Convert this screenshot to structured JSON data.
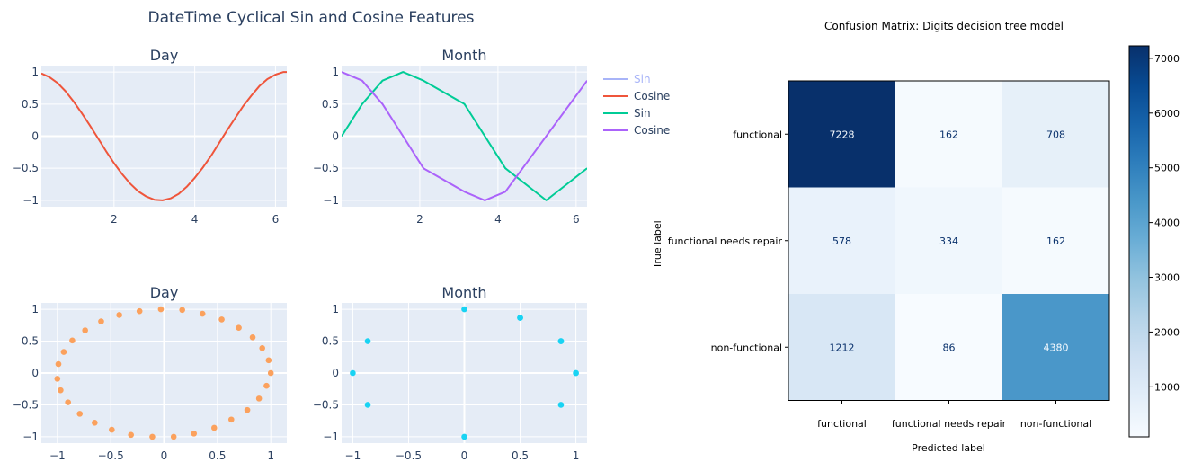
{
  "colors": {
    "plot_bg": "#e5ecf6",
    "grid": "#ffffff",
    "text": "#2a3f5f",
    "day_line": "#ef553b",
    "month_sin": "#00cc96",
    "month_cos": "#ab63fa",
    "legend_sin_faded": "#a8b4f8",
    "day_scatter": "#fba15d",
    "month_scatter": "#19d3f3",
    "cm_dark_text": "#f7fbff",
    "cm_light_text": "#08306b"
  },
  "left_figure": {
    "title": "DateTime Cyclical Sin and Cosine Features",
    "legend": [
      {
        "label": "Sin",
        "color": "#a8b4f8",
        "faded": true
      },
      {
        "label": "Cosine",
        "color": "#ef553b"
      },
      {
        "label": "Sin",
        "color": "#00cc96"
      },
      {
        "label": "Cosine",
        "color": "#ab63fa"
      }
    ]
  },
  "chart_data": [
    {
      "type": "line",
      "title": "Day",
      "xlim": [
        0.2,
        6.28
      ],
      "ylim": [
        -1.1,
        1.1
      ],
      "xticks": [
        2,
        4,
        6
      ],
      "xtick_labels": [
        "2",
        "4",
        "6"
      ],
      "yticks": [
        1,
        0.5,
        0,
        -0.5,
        -1
      ],
      "ytick_labels": [
        "1",
        "0.5",
        "0",
        "−0.5",
        "−1"
      ],
      "series": [
        {
          "color": "#ef553b",
          "x": [
            0.2,
            0.4,
            0.6,
            0.8,
            1.0,
            1.2,
            1.4,
            1.6,
            1.8,
            2.0,
            2.2,
            2.4,
            2.6,
            2.8,
            3.0,
            3.2,
            3.4,
            3.6,
            3.8,
            4.0,
            4.2,
            4.4,
            4.6,
            4.8,
            5.0,
            5.2,
            5.4,
            5.6,
            5.8,
            6.0,
            6.2,
            6.28
          ],
          "y": [
            0.98,
            0.92,
            0.83,
            0.7,
            0.54,
            0.36,
            0.17,
            -0.03,
            -0.23,
            -0.42,
            -0.59,
            -0.74,
            -0.86,
            -0.94,
            -0.99,
            -1.0,
            -0.97,
            -0.9,
            -0.79,
            -0.65,
            -0.49,
            -0.31,
            -0.11,
            0.09,
            0.28,
            0.47,
            0.63,
            0.78,
            0.89,
            0.96,
            1.0,
            1.0
          ]
        }
      ]
    },
    {
      "type": "line",
      "title": "Month",
      "xlim": [
        0,
        6.28
      ],
      "ylim": [
        -1.1,
        1.1
      ],
      "xticks": [
        2,
        4,
        6
      ],
      "xtick_labels": [
        "2",
        "4",
        "6"
      ],
      "yticks": [
        1,
        0.5,
        0,
        -0.5,
        -1
      ],
      "ytick_labels": [
        "1",
        "0.5",
        "0",
        "−0.5",
        "−1"
      ],
      "series": [
        {
          "color": "#00cc96",
          "x": [
            0,
            0.524,
            1.047,
            1.571,
            2.094,
            3.142,
            4.189,
            5.236,
            6.283
          ],
          "y": [
            0,
            0.5,
            0.866,
            1.0,
            0.866,
            0.5,
            -0.5,
            -1.0,
            -0.5
          ]
        },
        {
          "color": "#ab63fa",
          "x": [
            0,
            0.524,
            1.047,
            1.571,
            2.094,
            3.142,
            3.665,
            4.189,
            6.283
          ],
          "y": [
            1.0,
            0.866,
            0.5,
            0,
            -0.5,
            -0.866,
            -1.0,
            -0.866,
            0.866
          ]
        }
      ]
    },
    {
      "type": "scatter",
      "title": "Day",
      "xlim": [
        -1.15,
        1.15
      ],
      "ylim": [
        -1.1,
        1.1
      ],
      "xticks": [
        -1,
        -0.5,
        0,
        0.5,
        1
      ],
      "xtick_labels": [
        "−1",
        "−0.5",
        "0",
        "0.5",
        "1"
      ],
      "yticks": [
        1,
        0.5,
        0,
        -0.5,
        -1
      ],
      "ytick_labels": [
        "1",
        "0.5",
        "0",
        "−0.5",
        "−1"
      ],
      "series": [
        {
          "color": "#fba15d",
          "points": [
            [
              1.0,
              0.0
            ],
            [
              0.98,
              0.2
            ],
            [
              0.92,
              0.39
            ],
            [
              0.83,
              0.56
            ],
            [
              0.7,
              0.71
            ],
            [
              0.54,
              0.84
            ],
            [
              0.36,
              0.93
            ],
            [
              0.17,
              0.99
            ],
            [
              -0.03,
              1.0
            ],
            [
              -0.23,
              0.97
            ],
            [
              -0.42,
              0.91
            ],
            [
              -0.59,
              0.81
            ],
            [
              -0.74,
              0.67
            ],
            [
              -0.86,
              0.51
            ],
            [
              -0.94,
              0.33
            ],
            [
              -0.99,
              0.14
            ],
            [
              -1.0,
              -0.09
            ],
            [
              -0.97,
              -0.27
            ],
            [
              -0.9,
              -0.46
            ],
            [
              -0.79,
              -0.64
            ],
            [
              -0.65,
              -0.78
            ],
            [
              -0.49,
              -0.89
            ],
            [
              -0.31,
              -0.97
            ],
            [
              -0.11,
              -1.0
            ],
            [
              0.09,
              -1.0
            ],
            [
              0.28,
              -0.95
            ],
            [
              0.47,
              -0.86
            ],
            [
              0.63,
              -0.73
            ],
            [
              0.78,
              -0.58
            ],
            [
              0.89,
              -0.4
            ],
            [
              0.96,
              -0.2
            ]
          ]
        }
      ]
    },
    {
      "type": "scatter",
      "title": "Month",
      "xlim": [
        -1.1,
        1.1
      ],
      "ylim": [
        -1.1,
        1.1
      ],
      "xticks": [
        -1,
        -0.5,
        0,
        0.5,
        1
      ],
      "xtick_labels": [
        "−1",
        "−0.5",
        "0",
        "0.5",
        "1"
      ],
      "yticks": [
        1,
        0.5,
        0,
        -0.5,
        -1
      ],
      "ytick_labels": [
        "1",
        "0.5",
        "0",
        "−0.5",
        "−1"
      ],
      "series": [
        {
          "color": "#19d3f3",
          "points": [
            [
              1.0,
              0.0
            ],
            [
              0.866,
              0.5
            ],
            [
              0.5,
              0.866
            ],
            [
              0.0,
              1.0
            ],
            [
              -0.866,
              0.5
            ],
            [
              -1.0,
              0.0
            ],
            [
              -0.866,
              -0.5
            ],
            [
              0.0,
              -1.0
            ],
            [
              0.866,
              -0.5
            ],
            [
              1.0,
              0.0
            ],
            [
              0.866,
              0.5
            ],
            [
              0.5,
              0.866
            ]
          ]
        }
      ]
    },
    {
      "type": "heatmap",
      "title": "Confusion Matrix: Digits decision tree model",
      "xlabel": "Predicted label",
      "ylabel": "True label",
      "x_categories": [
        "functional",
        "functional needs repair",
        "non-functional"
      ],
      "y_categories": [
        "functional",
        "functional needs repair",
        "non-functional"
      ],
      "values": [
        [
          7228,
          162,
          708
        ],
        [
          578,
          334,
          162
        ],
        [
          1212,
          86,
          4380
        ]
      ],
      "value_labels": [
        [
          "7228",
          "162",
          "708"
        ],
        [
          "578",
          "334",
          "162"
        ],
        [
          "1212",
          "86",
          "4380"
        ]
      ],
      "colorscale": "Blues",
      "zlim": [
        86,
        7228
      ],
      "colorbar_ticks": [
        1000,
        2000,
        3000,
        4000,
        5000,
        6000,
        7000
      ],
      "colorbar_tick_labels": [
        "1000",
        "2000",
        "3000",
        "4000",
        "5000",
        "6000",
        "7000"
      ]
    }
  ]
}
